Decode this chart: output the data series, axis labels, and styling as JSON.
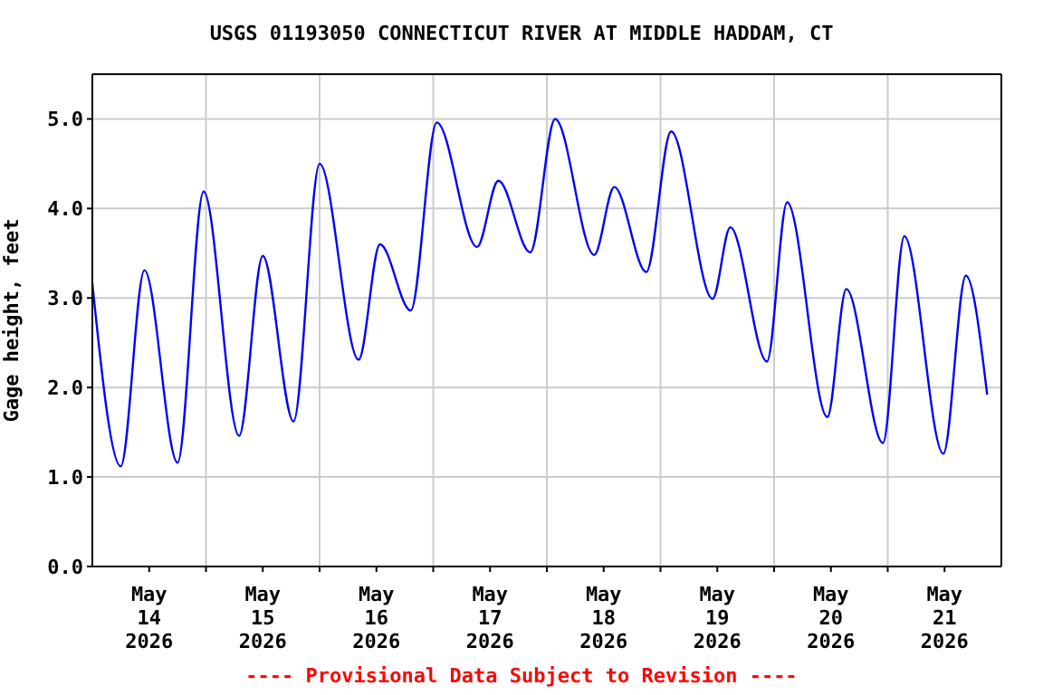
{
  "chart_data": {
    "type": "line",
    "title": "USGS 01193050 CONNECTICUT RIVER AT MIDDLE HADDAM, CT",
    "ylabel": "Gage height, feet",
    "annotations": [
      "---- Provisional Data Subject to Revision ----"
    ],
    "x": [
      "2026-05-14T00:00",
      "2026-05-14T06:00",
      "2026-05-14T11:00",
      "2026-05-14T18:00",
      "2026-05-14T23:30",
      "2026-05-15T07:00",
      "2026-05-15T12:00",
      "2026-05-15T18:30",
      "2026-05-16T00:00",
      "2026-05-16T08:15",
      "2026-05-16T12:45",
      "2026-05-16T19:15",
      "2026-05-17T00:45",
      "2026-05-17T09:15",
      "2026-05-17T13:45",
      "2026-05-17T20:30",
      "2026-05-18T01:45",
      "2026-05-18T10:00",
      "2026-05-18T14:15",
      "2026-05-18T21:00",
      "2026-05-19T02:15",
      "2026-05-19T11:00",
      "2026-05-19T14:45",
      "2026-05-19T22:30",
      "2026-05-20T02:45",
      "2026-05-20T11:15",
      "2026-05-20T15:15",
      "2026-05-20T23:00",
      "2026-05-21T03:30",
      "2026-05-21T11:45",
      "2026-05-21T16:30",
      "2026-05-21T21:00"
    ],
    "series": [
      {
        "color": "#0000ff",
        "values": [
          3.16,
          1.12,
          3.31,
          1.16,
          4.19,
          1.46,
          3.47,
          1.62,
          4.5,
          2.31,
          3.6,
          2.86,
          4.96,
          3.57,
          4.31,
          3.51,
          5.0,
          3.48,
          4.24,
          3.29,
          4.86,
          2.99,
          3.79,
          2.29,
          4.07,
          1.67,
          3.1,
          1.38,
          3.69,
          1.26,
          3.25,
          1.92
        ]
      }
    ],
    "xlim": [
      "2026-05-14T00:00",
      "2026-05-22T00:00"
    ],
    "xticks": [
      {
        "value": "2026-05-14T12:00",
        "label": "May 14 2026"
      },
      {
        "value": "2026-05-15T00:00",
        "label": null
      },
      {
        "value": "2026-05-15T12:00",
        "label": "May 15 2026"
      },
      {
        "value": "2026-05-16T00:00",
        "label": null
      },
      {
        "value": "2026-05-16T12:00",
        "label": "May 16 2026"
      },
      {
        "value": "2026-05-17T00:00",
        "label": null
      },
      {
        "value": "2026-05-17T12:00",
        "label": "May 17 2026"
      },
      {
        "value": "2026-05-18T00:00",
        "label": null
      },
      {
        "value": "2026-05-18T12:00",
        "label": "May 18 2026"
      },
      {
        "value": "2026-05-19T00:00",
        "label": null
      },
      {
        "value": "2026-05-19T12:00",
        "label": "May 19 2026"
      },
      {
        "value": "2026-05-20T00:00",
        "label": null
      },
      {
        "value": "2026-05-20T12:00",
        "label": "May 20 2026"
      },
      {
        "value": "2026-05-21T00:00",
        "label": null
      },
      {
        "value": "2026-05-21T12:00",
        "label": "May 21 2026"
      }
    ],
    "ylim": [
      0,
      5.5
    ],
    "yticks": [
      {
        "value": 0,
        "label": "0.0"
      },
      {
        "value": 1,
        "label": "1.0"
      },
      {
        "value": 2,
        "label": "2.0"
      },
      {
        "value": 3,
        "label": "3.0"
      },
      {
        "value": 4,
        "label": "4.0"
      },
      {
        "value": 5,
        "label": "5.0"
      }
    ],
    "grid": true,
    "legend": false,
    "marker": "none",
    "line_style": "solid"
  }
}
